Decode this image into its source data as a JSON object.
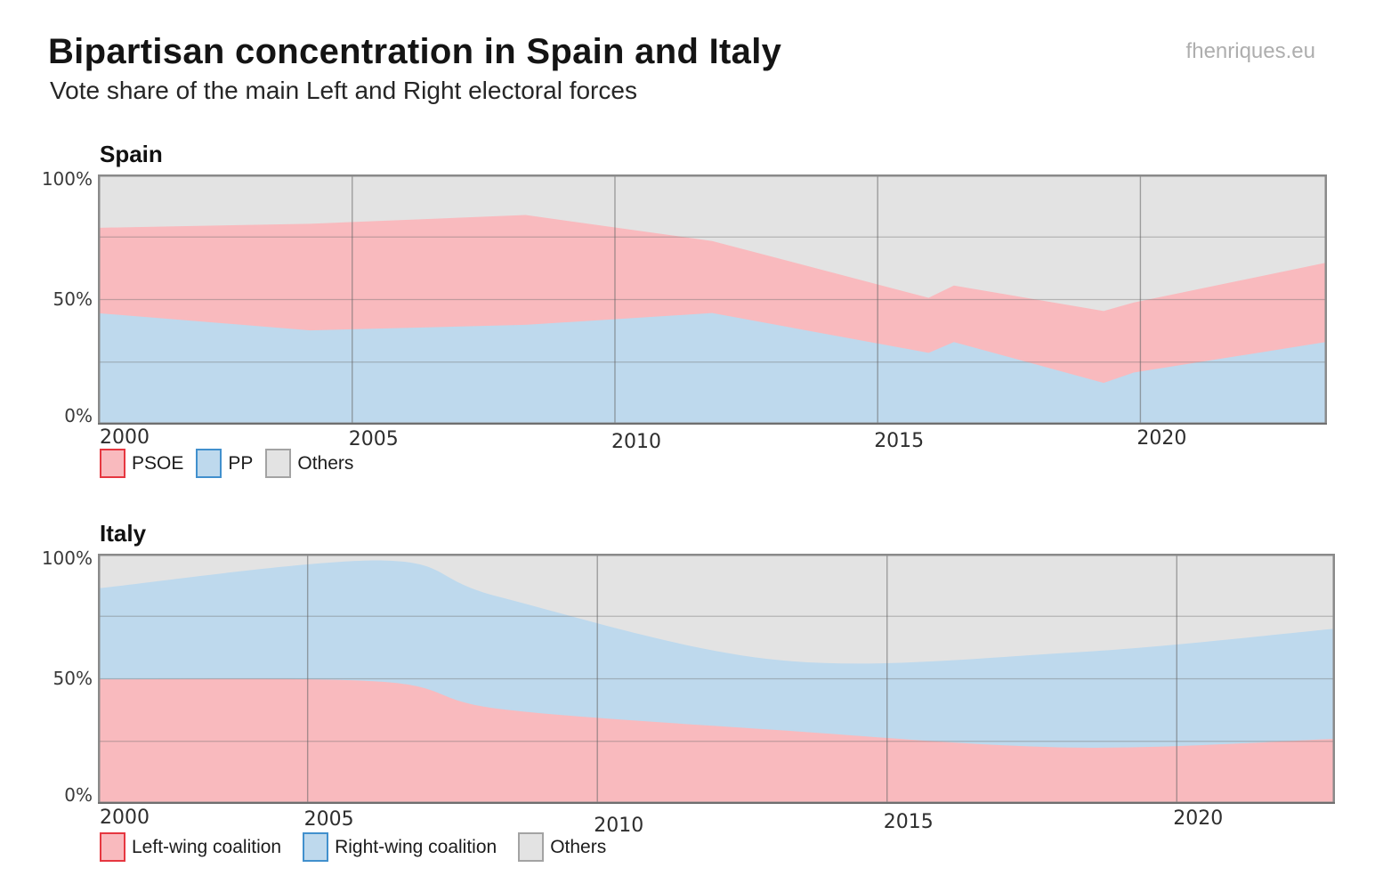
{
  "header": {
    "title": "Bipartisan concentration in Spain and Italy",
    "subtitle": "Vote share of the main Left and Right electoral forces",
    "watermark": "fhenriques.eu"
  },
  "colors": {
    "left_fill": "#f9babe",
    "left_border": "#e63740",
    "right_fill": "#bed9ed",
    "right_border": "#4190cd",
    "others_fill": "#e3e3e3",
    "others_border": "#a3a3a3",
    "frame": "#8a8a8a"
  },
  "chart_data": [
    {
      "country": "Spain",
      "type": "area",
      "stacked": true,
      "smooth": false,
      "x": [
        2000.2,
        2004.2,
        2008.3,
        2011.85,
        2015.97,
        2016.45,
        2019.3,
        2019.87,
        2023.55
      ],
      "xlim": [
        2000.16,
        2023.55
      ],
      "ylim": [
        0,
        100
      ],
      "grid_y": [
        25,
        50,
        75
      ],
      "x_tick_years": [
        2000,
        2005,
        2010,
        2015,
        2020
      ],
      "x_tick_labels": [
        "2000",
        "2005",
        "2010",
        "2015",
        "2020"
      ],
      "y_ticks": [
        {
          "value": 100,
          "label": "100%"
        },
        {
          "value": 50,
          "label": "50%"
        },
        {
          "value": 0,
          "label": "0%"
        }
      ],
      "series": [
        {
          "name": "PP",
          "stack": "bottom",
          "fill": "#bed9ed",
          "values": [
            44.5,
            37.7,
            39.9,
            44.6,
            28.7,
            33.0,
            16.7,
            20.8,
            33.1
          ]
        },
        {
          "name": "PSOE",
          "stack": "middle",
          "fill": "#f9babe",
          "values": [
            34.2,
            42.6,
            43.9,
            28.8,
            22.0,
            22.6,
            28.7,
            28.0,
            31.7
          ]
        },
        {
          "name": "Others",
          "stack": "top",
          "fill": "#e3e3e3",
          "values": [
            21.3,
            19.7,
            16.2,
            26.6,
            49.3,
            44.4,
            54.6,
            51.2,
            35.2
          ]
        }
      ],
      "legend": [
        {
          "label": "PSOE",
          "fill": "#f9babe",
          "border": "#e63740"
        },
        {
          "label": "PP",
          "fill": "#bed9ed",
          "border": "#4190cd"
        },
        {
          "label": "Others",
          "fill": "#e3e3e3",
          "border": "#a3a3a3"
        }
      ]
    },
    {
      "country": "Italy",
      "type": "area",
      "stacked": true,
      "smooth": true,
      "x": [
        2001.38,
        2006.3,
        2008.3,
        2013.12,
        2018.2,
        2022.73
      ],
      "xlim": [
        2001.38,
        2022.73
      ],
      "ylim": [
        0,
        100
      ],
      "grid_y": [
        25,
        50,
        75
      ],
      "x_tick_years": [
        2000,
        2005,
        2010,
        2015,
        2020
      ],
      "x_tick_labels": [
        "2000",
        "2005",
        "2010",
        "2015",
        "2020"
      ],
      "y_ticks": [
        {
          "value": 100,
          "label": "100%"
        },
        {
          "value": 50,
          "label": "50%"
        },
        {
          "value": 0,
          "label": "0%"
        }
      ],
      "series": [
        {
          "name": "Left-wing coalition",
          "stack": "bottom",
          "fill": "#f9babe",
          "values": [
            49.8,
            48.8,
            38.0,
            29.5,
            22.5,
            26.0
          ]
        },
        {
          "name": "Right-wing coalition",
          "stack": "middle",
          "fill": "#bed9ed",
          "values": [
            36.4,
            48.5,
            44.8,
            28.0,
            38.0,
            44.0
          ]
        },
        {
          "name": "Others",
          "stack": "top",
          "fill": "#e3e3e3",
          "values": [
            13.8,
            2.7,
            17.2,
            42.5,
            39.5,
            30.0
          ]
        }
      ],
      "legend": [
        {
          "label": "Left-wing coalition",
          "fill": "#f9babe",
          "border": "#e63740"
        },
        {
          "label": "Right-wing coalition",
          "fill": "#bed9ed",
          "border": "#4190cd"
        },
        {
          "label": "Others",
          "fill": "#e3e3e3",
          "border": "#a3a3a3"
        }
      ]
    }
  ]
}
